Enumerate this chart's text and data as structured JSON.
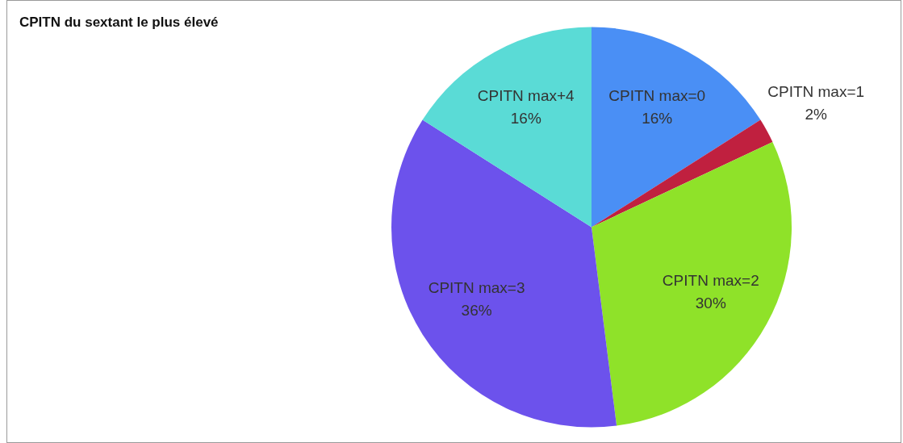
{
  "chart_data": {
    "type": "pie",
    "title": "CPITN du sextant le plus élevé",
    "categories": [
      "CPITN max=0",
      "CPITN max=1",
      "CPITN max=2",
      "CPITN max=3",
      "CPITN max+4"
    ],
    "values": [
      16,
      2,
      30,
      36,
      16
    ],
    "value_labels": [
      "16%",
      "2%",
      "30%",
      "36%",
      "16%"
    ],
    "colors": [
      "#4a8ff5",
      "#c0203f",
      "#8fe229",
      "#6c52ec",
      "#5adbd6"
    ],
    "legend": false
  }
}
